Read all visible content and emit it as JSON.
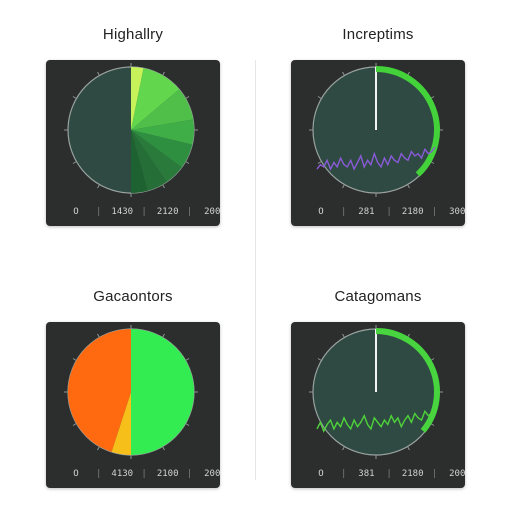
{
  "chart_data": [
    {
      "type": "pie",
      "title": "Highallry",
      "slices": [
        {
          "value": 3,
          "color": "#c8f25a"
        },
        {
          "value": 10,
          "color": "#62d64d"
        },
        {
          "value": 8,
          "color": "#4fbf4a"
        },
        {
          "value": 6,
          "color": "#3fae47"
        },
        {
          "value": 6,
          "color": "#2f8f41"
        },
        {
          "value": 5,
          "color": "#2a7a3b"
        },
        {
          "value": 5,
          "color": "#256e37"
        },
        {
          "value": 4,
          "color": "#1f6232"
        }
      ],
      "sweep_fraction": 0.5,
      "legend": {
        "dot_color": "#ff7a1a",
        "labels": [
          "O",
          "1430",
          "2120",
          "200"
        ]
      }
    },
    {
      "type": "line",
      "title": "Increptims",
      "arc_fraction": 0.38,
      "arc_color": "#44d23a",
      "line_color": "#8a5bd8",
      "values": [
        2,
        4,
        3,
        6,
        2,
        5,
        3,
        7,
        4,
        3,
        6,
        2,
        5,
        8,
        3,
        6,
        4,
        9,
        5,
        3,
        7,
        4,
        8,
        6,
        5,
        9,
        7,
        6,
        10,
        8,
        9,
        7,
        11,
        9,
        10,
        12
      ],
      "legend": {
        "dot_color": "#a46cff",
        "labels": [
          "O",
          "281",
          "2180",
          "300"
        ]
      }
    },
    {
      "type": "pie",
      "title": "Gacaontors",
      "slices": [
        {
          "value": 50,
          "color": "#33ec52"
        },
        {
          "value": 5,
          "color": "#f7bf1a"
        },
        {
          "value": 45,
          "color": "#ff6a10"
        }
      ],
      "legend": {
        "dot_color": "#38e04e",
        "labels": [
          "O",
          "4130",
          "2100",
          "200"
        ]
      }
    },
    {
      "type": "line",
      "title": "Catagomans",
      "arc_fraction": 0.36,
      "arc_color": "#48d43e",
      "line_color": "#4ed43a",
      "values": [
        3,
        6,
        2,
        5,
        7,
        3,
        6,
        4,
        8,
        5,
        3,
        7,
        4,
        6,
        9,
        5,
        3,
        8,
        6,
        4,
        7,
        5,
        9,
        6,
        8,
        4,
        7,
        9,
        6,
        10,
        8,
        7,
        11,
        9,
        10,
        12
      ],
      "legend": {
        "dot_color": "#a46cff",
        "labels": [
          "O",
          "381",
          "2180",
          "200"
        ]
      }
    }
  ]
}
